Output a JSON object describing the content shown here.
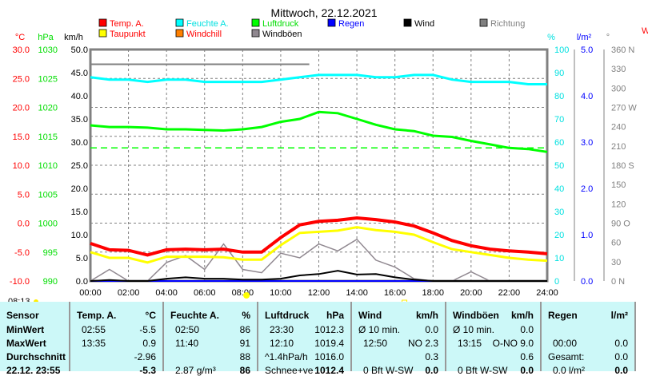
{
  "title": "Mittwoch, 22.12.2021",
  "legend": [
    {
      "label": "Temp. A.",
      "color": "#ff0000",
      "text_color": "#ff0000"
    },
    {
      "label": "Feuchte A.",
      "color": "#00ffff",
      "text_color": "#00e0e0"
    },
    {
      "label": "Luftdruck",
      "color": "#00ff00",
      "text_color": "#00dd00"
    },
    {
      "label": "Regen",
      "color": "#0000ff",
      "text_color": "#0000ff"
    },
    {
      "label": "Wind",
      "color": "#000000",
      "text_color": "#000000"
    },
    {
      "label": "Richtung",
      "color": "#808080",
      "text_color": "#808080"
    },
    {
      "label": "Taupunkt",
      "color": "#ffff00",
      "text_color": "#ff0000"
    },
    {
      "label": "Windchill",
      "color": "#ff8000",
      "text_color": "#ff0000"
    },
    {
      "label": "Windböen",
      "color": "#908890",
      "text_color": "#000000"
    }
  ],
  "axes": {
    "temp": {
      "unit": "°C",
      "ticks": [
        "30.0",
        "25.0",
        "20.0",
        "15.0",
        "10.0",
        "5.0",
        "0.0",
        "-5.0",
        "-10.0"
      ]
    },
    "pressure": {
      "unit": "hPa",
      "ticks": [
        "1030",
        "1025",
        "1020",
        "1015",
        "1010",
        "1005",
        "1000",
        "995",
        "990"
      ]
    },
    "wind": {
      "unit": "km/h",
      "ticks": [
        "50.0",
        "45.0",
        "40.0",
        "35.0",
        "30.0",
        "25.0",
        "20.0",
        "15.0",
        "10.0",
        "5.0",
        "0.0"
      ]
    },
    "humidity": {
      "unit": "%",
      "ticks": [
        "100",
        "90",
        "80",
        "70",
        "60",
        "50",
        "40",
        "30",
        "20",
        "10",
        "0"
      ]
    },
    "rain": {
      "unit": "l/m²",
      "ticks": [
        "5.0",
        "4.0",
        "3.0",
        "2.0",
        "1.0",
        "0.0"
      ]
    },
    "direction": {
      "unit": "°",
      "ticks": [
        "360 N",
        "330",
        "300",
        "270 W",
        "240",
        "210",
        "180 S",
        "150",
        "120",
        "90  O",
        "60",
        "30",
        "0   N"
      ]
    },
    "time": [
      "00:00",
      "02:00",
      "04:00",
      "06:00",
      "08:00",
      "10:00",
      "12:00",
      "14:00",
      "16:00",
      "18:00",
      "20:00",
      "22:00",
      "24:00"
    ]
  },
  "sunrise": "08:13",
  "chart_data": {
    "type": "line",
    "x_hours": [
      0,
      1,
      2,
      3,
      4,
      5,
      6,
      7,
      8,
      9,
      10,
      11,
      12,
      13,
      14,
      15,
      16,
      17,
      18,
      19,
      20,
      21,
      22,
      23,
      24
    ],
    "series": [
      {
        "name": "Temp. A.",
        "axis": "temp",
        "values": [
          -3.5,
          -4.6,
          -4.7,
          -5.5,
          -4.6,
          -4.5,
          -4.6,
          -4.5,
          -5.0,
          -5.0,
          -2.5,
          -0.3,
          0.3,
          0.5,
          0.9,
          0.6,
          0.2,
          -0.5,
          -1.7,
          -3.0,
          -3.9,
          -4.5,
          -4.8,
          -5.0,
          -5.3
        ]
      },
      {
        "name": "Taupunkt",
        "axis": "temp",
        "values": [
          -5.0,
          -6.0,
          -6.0,
          -6.8,
          -5.8,
          -5.8,
          -5.8,
          -5.9,
          -6.3,
          -6.3,
          -3.8,
          -1.7,
          -1.5,
          -1.3,
          -0.7,
          -1.2,
          -1.5,
          -2.0,
          -3.3,
          -4.5,
          -5.0,
          -5.5,
          -6.0,
          -6.3,
          -6.5
        ]
      },
      {
        "name": "Feuchte A.",
        "axis": "humidity",
        "values": [
          88,
          87,
          87,
          86,
          87,
          87,
          86,
          86,
          86,
          86,
          87,
          88,
          89,
          89,
          89,
          88,
          88,
          89,
          89,
          87,
          86,
          86,
          86,
          85,
          85
        ]
      },
      {
        "name": "Luftdruck",
        "axis": "pressure",
        "values": [
          1016.9,
          1016.6,
          1016.6,
          1016.5,
          1016.2,
          1016.2,
          1016.1,
          1016.0,
          1016.2,
          1016.6,
          1017.5,
          1018.0,
          1019.2,
          1019.0,
          1018.0,
          1017.0,
          1016.2,
          1015.9,
          1015.1,
          1014.9,
          1014.2,
          1013.6,
          1013.0,
          1012.8,
          1012.3
        ]
      },
      {
        "name": "Wind",
        "axis": "wind",
        "values": [
          0,
          0.2,
          0,
          0,
          0.5,
          0.8,
          0.5,
          0.5,
          0.3,
          0.3,
          0.5,
          1.2,
          1.5,
          2.2,
          1.4,
          1.5,
          0.8,
          0.3,
          0,
          0,
          0,
          0,
          0,
          0,
          0
        ]
      },
      {
        "name": "Windböen",
        "axis": "wind",
        "values": [
          0,
          2.5,
          0,
          0,
          4.0,
          5.5,
          2.5,
          8.0,
          2.5,
          1.8,
          6.0,
          5.0,
          8.0,
          6.5,
          9.0,
          4.5,
          3.0,
          0.5,
          0,
          0,
          2.0,
          0,
          0,
          0,
          0
        ]
      },
      {
        "name": "Regen",
        "axis": "rain",
        "values": [
          0,
          0,
          0,
          0,
          0,
          0,
          0,
          0,
          0,
          0,
          0,
          0,
          0,
          0,
          0,
          0,
          0,
          0,
          0,
          0,
          0,
          0,
          0,
          0,
          0
        ]
      }
    ],
    "pressure_reference": 1013,
    "direction_line": {
      "value": 337,
      "from_hour": 0,
      "to_hour": 11.5
    }
  },
  "table": {
    "headers": [
      {
        "label": "Sensor",
        "unit": ""
      },
      {
        "label": "Temp. A.",
        "unit": "°C"
      },
      {
        "label": "Feuchte A.",
        "unit": "%"
      },
      {
        "label": "Luftdruck",
        "unit": "hPa"
      },
      {
        "label": "Wind",
        "unit": "km/h"
      },
      {
        "label": "Windböen",
        "unit": "km/h"
      },
      {
        "label": "Regen",
        "unit": "l/m²"
      }
    ],
    "rows": [
      {
        "label": "MinWert",
        "cells": [
          [
            "02:55",
            "-5.5"
          ],
          [
            "02:50",
            "86"
          ],
          [
            "23:30",
            "1012.3"
          ],
          [
            "Ø 10 min.",
            "0.0"
          ],
          [
            "Ø 10 min.",
            "0.0"
          ],
          [
            "",
            ""
          ]
        ]
      },
      {
        "label": "MaxWert",
        "cells": [
          [
            "13:35",
            "0.9"
          ],
          [
            "11:40",
            "91"
          ],
          [
            "12:10",
            "1019.4"
          ],
          [
            "12:50",
            "NO 2.3"
          ],
          [
            "13:15",
            "O-NO 9.0"
          ],
          [
            "00:00",
            "0.0"
          ]
        ]
      },
      {
        "label": "Durchschnitt",
        "cells": [
          [
            "",
            "-2.96"
          ],
          [
            "",
            "88"
          ],
          [
            "^1.4hPa/h",
            "1016.0"
          ],
          [
            "",
            "0.3"
          ],
          [
            "",
            "0.6"
          ],
          [
            "Gesamt:",
            "0.0"
          ]
        ]
      },
      {
        "label": "22.12. 23:55",
        "cells": [
          [
            "",
            "-5.3"
          ],
          [
            "2.87 g/m³",
            "86"
          ],
          [
            "Schnee+ve",
            "1012.4"
          ],
          [
            "0 Bft W-SW",
            "0.0"
          ],
          [
            "0 Bft W-SW",
            "0.0"
          ],
          [
            "0.0 l/m²",
            "0.0"
          ]
        ]
      }
    ]
  }
}
